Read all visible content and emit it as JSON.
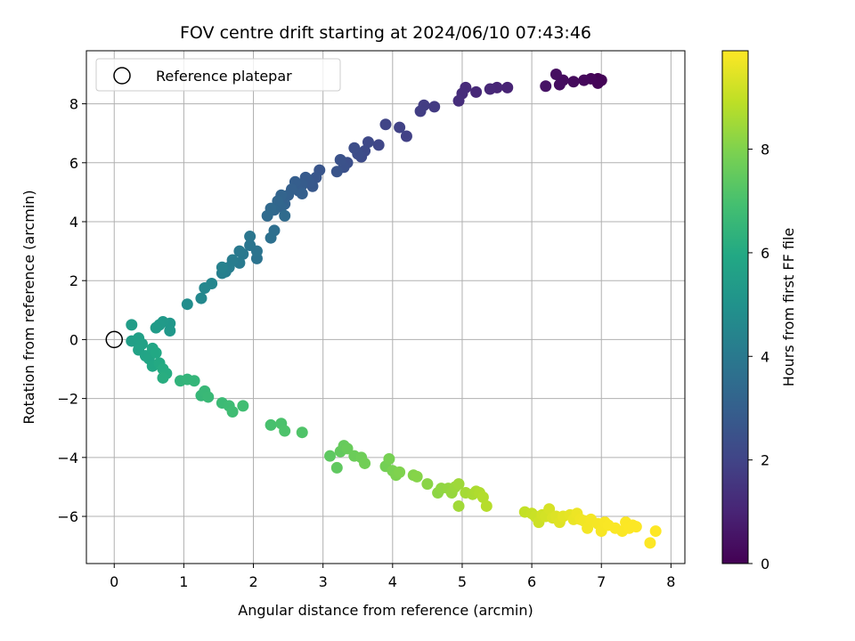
{
  "chart_data": {
    "type": "scatter",
    "title": "FOV centre drift starting at 2024/06/10 07:43:46",
    "xlabel": "Angular distance from reference (arcmin)",
    "ylabel": "Rotation from reference (arcmin)",
    "xlim": [
      -0.4,
      8.2
    ],
    "ylim": [
      -7.6,
      9.8
    ],
    "xticks": [
      0,
      1,
      2,
      3,
      4,
      5,
      6,
      7,
      8
    ],
    "yticks": [
      -6,
      -4,
      -2,
      0,
      2,
      4,
      6,
      8
    ],
    "grid": true,
    "legend": {
      "placement": "top-left",
      "entries": [
        "Reference platepar"
      ]
    },
    "reference_point": {
      "x": 0,
      "y": 0,
      "label": "Reference platepar"
    },
    "colorbar": {
      "label": "Hours from first FF file",
      "range": [
        0,
        9.9
      ],
      "ticks": [
        0,
        2,
        4,
        6,
        8
      ],
      "colormap": "viridis"
    },
    "points": [
      [
        6.95,
        8.85,
        0.0
      ],
      [
        7.0,
        8.8,
        0.05
      ],
      [
        6.95,
        8.7,
        0.1
      ],
      [
        6.85,
        8.85,
        0.15
      ],
      [
        6.75,
        8.8,
        0.2
      ],
      [
        6.6,
        8.75,
        0.25
      ],
      [
        6.45,
        8.8,
        0.3
      ],
      [
        6.4,
        8.65,
        0.35
      ],
      [
        6.35,
        9.0,
        0.4
      ],
      [
        6.2,
        8.6,
        0.5
      ],
      [
        5.65,
        8.55,
        1.0
      ],
      [
        5.5,
        8.55,
        1.05
      ],
      [
        5.4,
        8.5,
        1.1
      ],
      [
        5.2,
        8.4,
        1.15
      ],
      [
        5.05,
        8.55,
        1.2
      ],
      [
        5.0,
        8.35,
        1.25
      ],
      [
        4.95,
        8.1,
        1.3
      ],
      [
        4.6,
        7.9,
        1.7
      ],
      [
        4.45,
        7.95,
        1.75
      ],
      [
        4.4,
        7.75,
        1.8
      ],
      [
        4.2,
        6.9,
        1.9
      ],
      [
        4.1,
        7.2,
        1.95
      ],
      [
        3.9,
        7.3,
        2.0
      ],
      [
        3.8,
        6.6,
        2.1
      ],
      [
        3.65,
        6.7,
        2.15
      ],
      [
        3.6,
        6.4,
        2.2
      ],
      [
        3.55,
        6.2,
        2.25
      ],
      [
        3.5,
        6.3,
        2.3
      ],
      [
        3.45,
        6.5,
        2.35
      ],
      [
        3.35,
        6.0,
        2.4
      ],
      [
        3.3,
        5.85,
        2.45
      ],
      [
        3.25,
        6.1,
        2.5
      ],
      [
        3.2,
        5.7,
        2.55
      ],
      [
        2.95,
        5.75,
        2.6
      ],
      [
        2.9,
        5.5,
        2.65
      ],
      [
        2.85,
        5.2,
        2.7
      ],
      [
        2.8,
        5.35,
        2.75
      ],
      [
        2.75,
        5.5,
        2.8
      ],
      [
        2.7,
        5.25,
        2.85
      ],
      [
        2.65,
        5.05,
        2.9
      ],
      [
        2.6,
        5.35,
        2.95
      ],
      [
        2.55,
        5.1,
        3.0
      ],
      [
        2.5,
        4.9,
        3.05
      ],
      [
        2.45,
        4.6,
        3.1
      ],
      [
        2.4,
        4.9,
        3.15
      ],
      [
        2.4,
        4.5,
        3.2
      ],
      [
        2.35,
        4.7,
        3.25
      ],
      [
        2.3,
        4.4,
        3.3
      ],
      [
        2.25,
        4.45,
        3.35
      ],
      [
        2.2,
        4.2,
        3.4
      ],
      [
        2.45,
        4.2,
        3.45
      ],
      [
        2.7,
        4.95,
        3.0
      ],
      [
        2.3,
        3.7,
        3.6
      ],
      [
        2.25,
        3.45,
        3.65
      ],
      [
        2.05,
        2.75,
        3.75
      ],
      [
        2.05,
        3.0,
        3.8
      ],
      [
        1.95,
        3.2,
        3.85
      ],
      [
        1.95,
        3.5,
        3.9
      ],
      [
        1.85,
        2.9,
        3.95
      ],
      [
        1.8,
        3.0,
        4.0
      ],
      [
        1.8,
        2.6,
        4.05
      ],
      [
        1.7,
        2.7,
        4.1
      ],
      [
        1.65,
        2.45,
        4.15
      ],
      [
        1.6,
        2.3,
        4.2
      ],
      [
        1.55,
        2.25,
        4.25
      ],
      [
        1.55,
        2.45,
        4.3
      ],
      [
        1.4,
        1.9,
        4.5
      ],
      [
        1.3,
        1.75,
        4.55
      ],
      [
        1.25,
        1.4,
        4.6
      ],
      [
        1.05,
        1.2,
        4.8
      ],
      [
        0.8,
        0.55,
        5.2
      ],
      [
        0.8,
        0.3,
        5.25
      ],
      [
        0.7,
        0.6,
        5.3
      ],
      [
        0.65,
        0.5,
        5.35
      ],
      [
        0.6,
        0.4,
        5.4
      ],
      [
        0.25,
        0.5,
        5.45
      ],
      [
        0.25,
        -0.05,
        5.5
      ],
      [
        0.3,
        -0.05,
        5.55
      ],
      [
        0.35,
        0.05,
        5.6
      ],
      [
        0.4,
        -0.15,
        5.65
      ],
      [
        0.35,
        -0.35,
        5.7
      ],
      [
        0.45,
        -0.55,
        5.75
      ],
      [
        0.5,
        -0.65,
        5.8
      ],
      [
        0.55,
        -0.3,
        5.85
      ],
      [
        0.55,
        -0.9,
        5.9
      ],
      [
        0.6,
        -0.45,
        5.95
      ],
      [
        0.65,
        -0.8,
        6.0
      ],
      [
        0.7,
        -1.0,
        6.05
      ],
      [
        0.75,
        -1.15,
        6.1
      ],
      [
        0.7,
        -1.3,
        6.15
      ],
      [
        0.95,
        -1.4,
        6.4
      ],
      [
        1.05,
        -1.35,
        6.45
      ],
      [
        1.15,
        -1.4,
        6.5
      ],
      [
        1.25,
        -1.9,
        6.55
      ],
      [
        1.3,
        -1.75,
        6.6
      ],
      [
        1.35,
        -1.95,
        6.65
      ],
      [
        1.55,
        -2.15,
        6.7
      ],
      [
        1.65,
        -2.25,
        6.75
      ],
      [
        1.7,
        -2.45,
        6.8
      ],
      [
        1.85,
        -2.25,
        6.85
      ],
      [
        2.25,
        -2.9,
        7.0
      ],
      [
        2.4,
        -2.85,
        7.05
      ],
      [
        2.45,
        -3.1,
        7.1
      ],
      [
        2.7,
        -3.15,
        7.15
      ],
      [
        3.1,
        -3.95,
        7.4
      ],
      [
        3.2,
        -4.35,
        7.45
      ],
      [
        3.25,
        -3.8,
        7.5
      ],
      [
        3.3,
        -3.6,
        7.55
      ],
      [
        3.35,
        -3.7,
        7.6
      ],
      [
        3.45,
        -3.95,
        7.65
      ],
      [
        3.55,
        -4.0,
        7.7
      ],
      [
        3.6,
        -4.2,
        7.75
      ],
      [
        3.9,
        -4.3,
        7.8
      ],
      [
        3.95,
        -4.05,
        7.85
      ],
      [
        4.0,
        -4.45,
        7.9
      ],
      [
        4.05,
        -4.6,
        7.95
      ],
      [
        4.1,
        -4.5,
        8.0
      ],
      [
        4.3,
        -4.6,
        8.05
      ],
      [
        4.35,
        -4.65,
        8.1
      ],
      [
        4.5,
        -4.9,
        8.15
      ],
      [
        4.65,
        -5.2,
        8.2
      ],
      [
        4.7,
        -5.05,
        8.25
      ],
      [
        4.8,
        -5.05,
        8.3
      ],
      [
        4.85,
        -5.2,
        8.35
      ],
      [
        4.9,
        -5.0,
        8.4
      ],
      [
        4.95,
        -4.9,
        8.45
      ],
      [
        4.95,
        -5.65,
        8.5
      ],
      [
        5.05,
        -5.2,
        8.55
      ],
      [
        5.15,
        -5.25,
        8.6
      ],
      [
        5.2,
        -5.15,
        8.65
      ],
      [
        5.25,
        -5.2,
        8.7
      ],
      [
        5.3,
        -5.35,
        8.75
      ],
      [
        5.35,
        -5.65,
        8.8
      ],
      [
        5.9,
        -5.85,
        9.0
      ],
      [
        6.0,
        -5.9,
        9.05
      ],
      [
        6.05,
        -6.0,
        9.1
      ],
      [
        6.1,
        -6.2,
        9.15
      ],
      [
        6.15,
        -5.95,
        9.2
      ],
      [
        6.2,
        -6.0,
        9.25
      ],
      [
        6.25,
        -5.75,
        9.3
      ],
      [
        6.3,
        -6.05,
        9.35
      ],
      [
        6.35,
        -6.0,
        9.4
      ],
      [
        6.4,
        -6.2,
        9.45
      ],
      [
        6.45,
        -6.0,
        9.5
      ],
      [
        6.55,
        -5.95,
        9.55
      ],
      [
        6.6,
        -6.1,
        9.6
      ],
      [
        6.65,
        -5.9,
        9.65
      ],
      [
        6.7,
        -6.1,
        9.7
      ],
      [
        6.75,
        -6.15,
        9.72
      ],
      [
        6.8,
        -6.4,
        9.74
      ],
      [
        6.85,
        -6.1,
        9.76
      ],
      [
        6.95,
        -6.25,
        9.78
      ],
      [
        7.0,
        -6.5,
        9.8
      ],
      [
        7.05,
        -6.2,
        9.82
      ],
      [
        7.1,
        -6.3,
        9.84
      ],
      [
        7.2,
        -6.4,
        9.85
      ],
      [
        7.3,
        -6.5,
        9.86
      ],
      [
        7.35,
        -6.2,
        9.87
      ],
      [
        7.4,
        -6.4,
        9.88
      ],
      [
        7.45,
        -6.3,
        9.88
      ],
      [
        7.5,
        -6.35,
        9.89
      ],
      [
        7.7,
        -6.9,
        9.89
      ],
      [
        7.78,
        -6.5,
        9.9
      ]
    ]
  }
}
